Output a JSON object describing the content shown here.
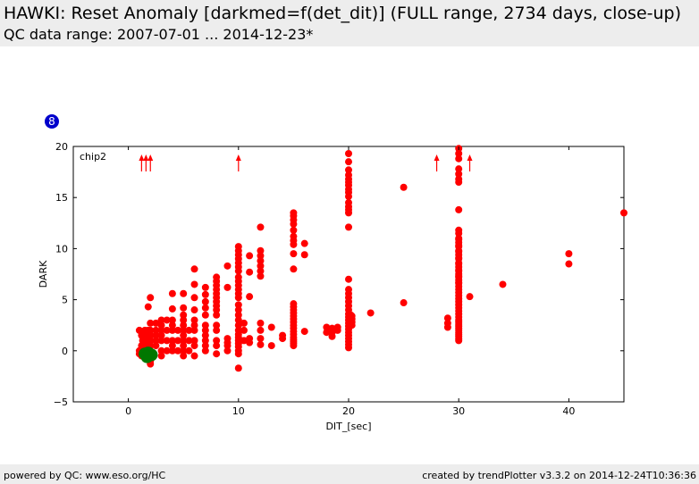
{
  "header": {
    "title": "HAWKI: Reset Anomaly [darkmed=f(det_dit)] (FULL range, 2734 days, close-up)",
    "subtitle": "QC data range: 2007-07-01 ... 2014-12-23*"
  },
  "badge": "8",
  "footer": {
    "left": "powered by QC: www.eso.org/HC",
    "right": "created by trendPlotter v3.3.2 on 2014-12-24T10:36:36"
  },
  "colors": {
    "points": "#ff0000",
    "highlight": "#007700",
    "badge": "#0000cc"
  },
  "chart_data": {
    "type": "scatter",
    "xlabel": "DIT_[sec]",
    "ylabel": "DARK",
    "panel_label": "chip2",
    "xlim": [
      -5,
      45
    ],
    "ylim": [
      -5,
      20
    ],
    "xticks": [
      0,
      10,
      20,
      30,
      40
    ],
    "yticks": [
      -5,
      0,
      5,
      10,
      15,
      20
    ],
    "grid": false,
    "series": [
      {
        "color": "#ff0000",
        "x": [
          1,
          1,
          1,
          1.2,
          1.2,
          1.2,
          1.3,
          1.3,
          1.5,
          1.5,
          1.5,
          1.5,
          1.5,
          1.5,
          1.7,
          1.7,
          1.7,
          1.7,
          1.8,
          1.8,
          2,
          2,
          2,
          2,
          2,
          2,
          2,
          2,
          2,
          2,
          2.5,
          2.5,
          2.5,
          2.5,
          2.5,
          3,
          3,
          3,
          3,
          3,
          3,
          3,
          3.5,
          3.5,
          3.5,
          3.5,
          4,
          4,
          4,
          4,
          4,
          4,
          4,
          4,
          4.5,
          4.5,
          4.5,
          5,
          5,
          5,
          5,
          5,
          5,
          5,
          5,
          5,
          5,
          5,
          5.5,
          5.5,
          5.5,
          6,
          6,
          6,
          6,
          6,
          6,
          6,
          6,
          6,
          6,
          7,
          7,
          7,
          7,
          7,
          7,
          7,
          7,
          7,
          7,
          7,
          8,
          8,
          8,
          8,
          8,
          8,
          8,
          8,
          8,
          8,
          8,
          8,
          8,
          8,
          8,
          9,
          9,
          9,
          9,
          9,
          9,
          10,
          10,
          10,
          10,
          10,
          10,
          10,
          10,
          10,
          10,
          10,
          10,
          10,
          10,
          10,
          10,
          10,
          10,
          10,
          10,
          10,
          10,
          10,
          10,
          10,
          10,
          10,
          10.5,
          10.5,
          10.5,
          11,
          11,
          11,
          11,
          11,
          12,
          12,
          12,
          12,
          12,
          12,
          12,
          12,
          12,
          12,
          12,
          13,
          13,
          14,
          14,
          15,
          15,
          15,
          15,
          15,
          15,
          15,
          15,
          15,
          15,
          15,
          15,
          15,
          15,
          15,
          15,
          15,
          15,
          15,
          15,
          15,
          15,
          15,
          15,
          15,
          15,
          16,
          16,
          16,
          18,
          18,
          18.5,
          18.5,
          18.5,
          19,
          19,
          20,
          20,
          20,
          20,
          20,
          20,
          20,
          20,
          20,
          20,
          20,
          20,
          20,
          20,
          20,
          20,
          20,
          20,
          20,
          20,
          20,
          20,
          20,
          20,
          20,
          20,
          20,
          20,
          20,
          20,
          20,
          20,
          20,
          20,
          20.2,
          20.2,
          20.2,
          20.2,
          20.3,
          20.3,
          20.3,
          20.3,
          22,
          25,
          25,
          29,
          29,
          29,
          30,
          30,
          30,
          30,
          30,
          30,
          30,
          30,
          30,
          30,
          30,
          30,
          30,
          30,
          30,
          30,
          30,
          30,
          30,
          30,
          30,
          30,
          30,
          30,
          30,
          30,
          30,
          30,
          30,
          30,
          30,
          30,
          30,
          30,
          30,
          30,
          30,
          30,
          30,
          30,
          30,
          30,
          30,
          30,
          30,
          30,
          30,
          30,
          30,
          30,
          30,
          30,
          30,
          31,
          34,
          40,
          40,
          45
        ],
        "y": [
          2,
          0,
          -0.3,
          1.5,
          0.5,
          -0.5,
          1,
          0,
          2,
          1.5,
          1,
          0.5,
          0,
          -0.5,
          1.5,
          0.5,
          0,
          -0.5,
          4.3,
          2,
          5.2,
          2.7,
          2,
          1.5,
          1,
          0.5,
          0,
          -0.5,
          -1,
          -1.3,
          2.7,
          2,
          1.5,
          1,
          0.5,
          3,
          2.5,
          2,
          1.5,
          1,
          0,
          -0.5,
          3,
          2,
          1,
          0,
          5.6,
          4.1,
          3,
          2.5,
          2,
          1,
          0.5,
          0,
          2,
          1,
          0,
          5.6,
          4.2,
          3.5,
          3,
          2.5,
          2,
          1.5,
          1,
          0.5,
          0,
          -0.5,
          2,
          1,
          0,
          8,
          6.5,
          5.2,
          4,
          3,
          2.5,
          2,
          1,
          0.5,
          -0.5,
          6.2,
          5.5,
          4.8,
          4.2,
          3.5,
          2.5,
          2,
          1.5,
          1,
          0.5,
          0,
          7.2,
          6.8,
          6.4,
          6,
          5.6,
          5.2,
          4.8,
          4.4,
          4,
          3.5,
          2.5,
          2,
          1,
          0.5,
          -0.3,
          8.3,
          6.2,
          1.2,
          0.8,
          0.5,
          0,
          10.2,
          9.8,
          9.4,
          9,
          8.6,
          8.2,
          7.8,
          7.2,
          6.8,
          6.4,
          6,
          5.6,
          5.2,
          4.5,
          4,
          3.5,
          3,
          2.5,
          2,
          1.6,
          1.3,
          1,
          0.7,
          0.4,
          0,
          -0.3,
          -1.7,
          2.7,
          2,
          1,
          9.3,
          7.7,
          5.3,
          1.2,
          0.8,
          12.1,
          9.8,
          9.3,
          8.8,
          8.3,
          7.8,
          7.3,
          2.7,
          2,
          1.2,
          0.6,
          2.3,
          0.5,
          1.5,
          1.2,
          13.5,
          13.2,
          12.8,
          12.4,
          11.8,
          11.2,
          10.8,
          10.4,
          9.5,
          8,
          4.6,
          4.3,
          4,
          3.7,
          3.4,
          3.1,
          2.8,
          2.5,
          2.2,
          1.9,
          1.6,
          1.3,
          1.1,
          0.9,
          0.7,
          0.5,
          10.5,
          9.4,
          1.9,
          2.3,
          1.8,
          2.2,
          1.8,
          1.4,
          2.3,
          2,
          19.3,
          18.5,
          17.7,
          17.2,
          16.8,
          16.5,
          16.2,
          15.8,
          15.5,
          15.1,
          14.5,
          14.1,
          13.8,
          13.5,
          12.1,
          7,
          6,
          5.6,
          5.2,
          4.8,
          4.4,
          4,
          3.6,
          3.3,
          3,
          2.7,
          2.4,
          2.1,
          1.8,
          1.5,
          1.2,
          0.9,
          0.6,
          0.3,
          3.5,
          3.2,
          2.9,
          2.6,
          3.4,
          3.1,
          2.8,
          2.5,
          3.7,
          16,
          4.7,
          3.2,
          2.7,
          2.3,
          19.8,
          19.3,
          18.8,
          17.8,
          17.3,
          16.8,
          16.5,
          13.8,
          11.8,
          11,
          10.6,
          10.2,
          9.8,
          9.4,
          9,
          8.6,
          8.2,
          7.8,
          7.5,
          7.2,
          6.9,
          6.6,
          6.3,
          6,
          5.7,
          5.4,
          5.1,
          4.8,
          4.5,
          4.2,
          3.9,
          3.6,
          3.3,
          3,
          2.8,
          2.6,
          2.4,
          2.2,
          2,
          1.8,
          1.6,
          1.4,
          1.2,
          1,
          11.5,
          10.9,
          10.3,
          9.7,
          9.1,
          8.5,
          7.9,
          7.3,
          6.7,
          5.3,
          6.5,
          9.5,
          8.5,
          13.5
        ]
      },
      {
        "color": "#007700",
        "x": [
          1.5,
          1.8,
          2.1,
          1.7
        ],
        "y": [
          -0.3,
          -0.2,
          -0.4,
          -0.6
        ]
      }
    ],
    "outliers_above": {
      "color": "#ff0000",
      "x": [
        1.2,
        1.6,
        2,
        10,
        28,
        31
      ]
    }
  }
}
